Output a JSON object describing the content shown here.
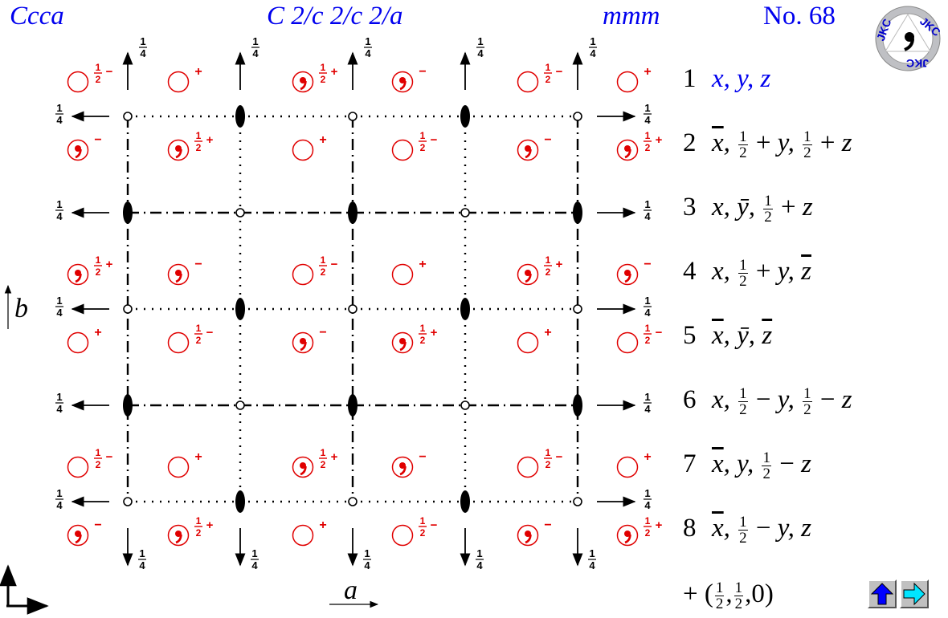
{
  "header": {
    "symbol_short": "Ccca",
    "symbol_full": "C 2/c 2/c 2/a",
    "point_group": "mmm",
    "number": "No. 68"
  },
  "axes": {
    "a": "a",
    "b": "b"
  },
  "fractions": {
    "quarter_num": "1",
    "quarter_den": "4",
    "half_num": "1",
    "half_den": "2"
  },
  "signs": {
    "plus": "+",
    "minus": "−"
  },
  "operations": [
    {
      "n": "1",
      "text": "x, y, z"
    },
    {
      "n": "2",
      "text": "x̄, ½ + y, ½ + z"
    },
    {
      "n": "3",
      "text": "x, ȳ, ½ + z"
    },
    {
      "n": "4",
      "text": "x, ½ + y, z̄"
    },
    {
      "n": "5",
      "text": "x̄, ȳ, z̄"
    },
    {
      "n": "6",
      "text": "x, ½ − y, ½ − z"
    },
    {
      "n": "7",
      "text": "x̄, y, ½ − z"
    },
    {
      "n": "8",
      "text": "x̄, ½ − y, z"
    }
  ],
  "centering": "+ (½,½,0)",
  "logo_text": "JKC",
  "colors": {
    "header": "#0000ee",
    "positions": "#e00000",
    "lines": "#000000",
    "nav_up": "#0000ff",
    "nav_next": "#00e5ff"
  },
  "icons": {
    "nav_up": "up-arrow-icon",
    "nav_next": "right-arrow-icon"
  }
}
